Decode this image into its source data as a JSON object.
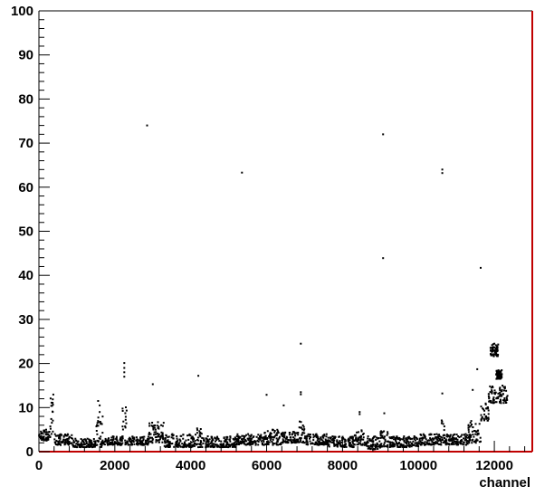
{
  "chart_data": {
    "type": "scatter",
    "xlabel": "channel",
    "ylabel": "",
    "xlim": [
      0,
      13000
    ],
    "ylim": [
      0,
      100
    ],
    "x_ticks": [
      0,
      2000,
      4000,
      6000,
      8000,
      10000,
      12000
    ],
    "y_ticks": [
      0,
      10,
      20,
      30,
      40,
      50,
      60,
      70,
      80,
      90,
      100
    ],
    "grid": false,
    "marker_color": "#000000",
    "frame_color": "#000000",
    "edge_accent_color": "#c00000",
    "outliers": [
      {
        "x": 2850,
        "y": 74
      },
      {
        "x": 5350,
        "y": 63.3
      },
      {
        "x": 9070,
        "y": 72
      },
      {
        "x": 9070,
        "y": 43.9
      },
      {
        "x": 10630,
        "y": 64
      },
      {
        "x": 10630,
        "y": 63.2
      },
      {
        "x": 11640,
        "y": 41.7
      },
      {
        "x": 6900,
        "y": 24.5
      },
      {
        "x": 4200,
        "y": 17.2
      },
      {
        "x": 3000,
        "y": 15.3
      },
      {
        "x": 6000,
        "y": 12.9
      },
      {
        "x": 6900,
        "y": 13.5
      },
      {
        "x": 6900,
        "y": 13.0
      },
      {
        "x": 10630,
        "y": 13.2
      },
      {
        "x": 2250,
        "y": 20.1
      },
      {
        "x": 2250,
        "y": 19.0
      },
      {
        "x": 2250,
        "y": 18.0
      },
      {
        "x": 2250,
        "y": 17.0
      },
      {
        "x": 1560,
        "y": 11.5
      },
      {
        "x": 1600,
        "y": 10.5
      },
      {
        "x": 1600,
        "y": 9.0
      },
      {
        "x": 6450,
        "y": 10.5
      },
      {
        "x": 8450,
        "y": 9.0
      },
      {
        "x": 8450,
        "y": 8.5
      },
      {
        "x": 9100,
        "y": 8.7
      },
      {
        "x": 11430,
        "y": 14.0
      },
      {
        "x": 11550,
        "y": 18.7
      },
      {
        "x": 12000,
        "y": 23.0
      }
    ],
    "baseline_segments": [
      {
        "x": [
          0,
          300
        ],
        "y": [
          2.5,
          5
        ]
      },
      {
        "x": [
          300,
          400
        ],
        "y": [
          4,
          13
        ]
      },
      {
        "x": [
          400,
          900
        ],
        "y": [
          1.5,
          4
        ]
      },
      {
        "x": [
          900,
          1500
        ],
        "y": [
          1,
          3
        ]
      },
      {
        "x": [
          1500,
          1700
        ],
        "y": [
          1,
          8
        ]
      },
      {
        "x": [
          1700,
          2200
        ],
        "y": [
          1.5,
          3.5
        ]
      },
      {
        "x": [
          2200,
          2350
        ],
        "y": [
          1.5,
          11
        ]
      },
      {
        "x": [
          2350,
          2900
        ],
        "y": [
          1.5,
          3.5
        ]
      },
      {
        "x": [
          2900,
          3300
        ],
        "y": [
          2,
          7
        ]
      },
      {
        "x": [
          3300,
          4100
        ],
        "y": [
          1,
          4
        ]
      },
      {
        "x": [
          4100,
          4300
        ],
        "y": [
          1,
          6
        ]
      },
      {
        "x": [
          4300,
          5200
        ],
        "y": [
          1,
          3.5
        ]
      },
      {
        "x": [
          5200,
          5900
        ],
        "y": [
          1.5,
          4
        ]
      },
      {
        "x": [
          5900,
          6400
        ],
        "y": [
          1.5,
          5
        ]
      },
      {
        "x": [
          6400,
          6850
        ],
        "y": [
          2,
          4.5
        ]
      },
      {
        "x": [
          6850,
          7000
        ],
        "y": [
          2,
          7
        ]
      },
      {
        "x": [
          7000,
          7600
        ],
        "y": [
          1.5,
          4
        ]
      },
      {
        "x": [
          7600,
          8300
        ],
        "y": [
          1,
          3.5
        ]
      },
      {
        "x": [
          8300,
          8600
        ],
        "y": [
          1.5,
          5
        ]
      },
      {
        "x": [
          8600,
          9000
        ],
        "y": [
          0.5,
          3.5
        ]
      },
      {
        "x": [
          9000,
          9200
        ],
        "y": [
          1,
          5
        ]
      },
      {
        "x": [
          9200,
          10000
        ],
        "y": [
          1,
          3.5
        ]
      },
      {
        "x": [
          10000,
          10600
        ],
        "y": [
          1.5,
          4
        ]
      },
      {
        "x": [
          10600,
          10700
        ],
        "y": [
          2,
          8
        ]
      },
      {
        "x": [
          10700,
          11300
        ],
        "y": [
          1.5,
          4
        ]
      },
      {
        "x": [
          11300,
          11650
        ],
        "y": [
          2,
          7
        ]
      },
      {
        "x": [
          11650,
          11850
        ],
        "y": [
          7,
          11
        ]
      },
      {
        "x": [
          11850,
          12350
        ],
        "y": [
          11,
          15
        ]
      }
    ],
    "cluster_segments": [
      {
        "x": [
          11900,
          12100
        ],
        "y": [
          21.5,
          24.5
        ]
      },
      {
        "x": [
          12050,
          12200
        ],
        "y": [
          16.5,
          18.5
        ]
      }
    ]
  }
}
